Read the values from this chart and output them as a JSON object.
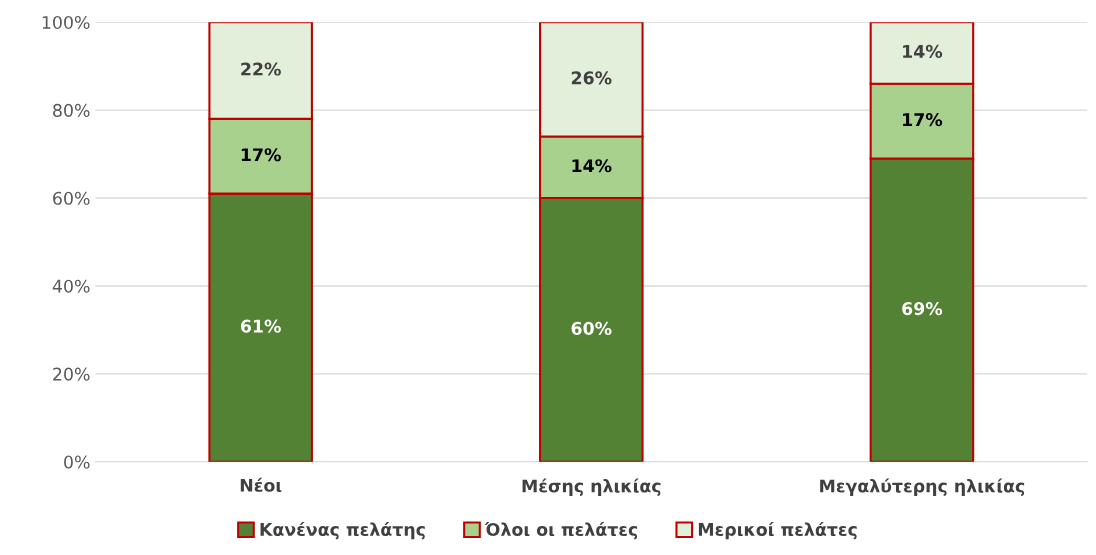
{
  "chart_data": {
    "type": "bar",
    "stacked": true,
    "categories": [
      "Νέοι",
      "Μέσης ηλικίας",
      "Μεγαλύτερης ηλικίας"
    ],
    "series": [
      {
        "name": "Κανένας πελάτης",
        "color": "#548235",
        "values": [
          61,
          60,
          69
        ],
        "value_labels": [
          "61%",
          "60%",
          "69%"
        ]
      },
      {
        "name": "Όλοι οι πελάτες",
        "color": "#a9d18e",
        "values": [
          17,
          14,
          17
        ],
        "value_labels": [
          "17%",
          "14%",
          "17%"
        ]
      },
      {
        "name": "Μερικοί πελάτες",
        "color": "#e2efda",
        "values": [
          22,
          26,
          14
        ],
        "value_labels": [
          "22%",
          "26%",
          "14%"
        ]
      }
    ],
    "ylim": [
      0,
      100
    ],
    "yticks": [
      {
        "value": 0,
        "label": "0%"
      },
      {
        "value": 20,
        "label": "20%"
      },
      {
        "value": 40,
        "label": "40%"
      },
      {
        "value": 60,
        "label": "60%"
      },
      {
        "value": 80,
        "label": "80%"
      },
      {
        "value": 100,
        "label": "100%"
      }
    ],
    "grid": "y",
    "legend": "bottom"
  }
}
